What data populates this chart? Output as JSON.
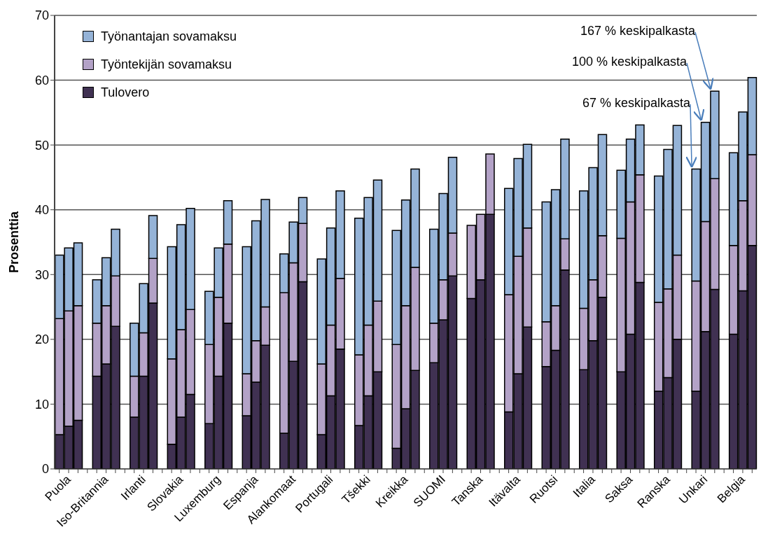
{
  "chart_data": {
    "type": "bar",
    "stacked": true,
    "ylabel": "Prosenttia",
    "categories": [
      null,
      "Puola",
      null,
      null,
      null,
      "Iso-Britannia",
      null,
      null,
      null,
      "Irlanti",
      null,
      null,
      null,
      "Slovakia",
      null,
      null,
      null,
      "Luxemburg",
      null,
      null,
      null,
      "Espanja",
      null,
      null,
      null,
      "Alankomaat",
      null,
      null,
      null,
      "Portugali",
      null,
      null,
      null,
      "Tšekki",
      null,
      null,
      null,
      "Kreikka",
      null,
      null,
      null,
      "SUOMI",
      null,
      null,
      null,
      "Tanska",
      null,
      null,
      null,
      "Itävalta",
      null,
      null,
      null,
      "Ruotsi",
      null,
      null,
      null,
      "Italia",
      null,
      null,
      null,
      "Saksa",
      null,
      null,
      null,
      "Ranska",
      null,
      null,
      null,
      "Unkari",
      null,
      null,
      null,
      "Belgia",
      null
    ],
    "series": [
      {
        "name": "Tulovero",
        "color": "#403152",
        "values": [
          5.3,
          6.6,
          7.5,
          null,
          14.3,
          16.2,
          22.0,
          null,
          8.0,
          14.3,
          25.6,
          null,
          3.8,
          8.0,
          11.5,
          null,
          7.0,
          14.3,
          22.5,
          null,
          8.2,
          13.4,
          19.1,
          null,
          5.5,
          16.6,
          28.9,
          null,
          5.3,
          11.3,
          18.5,
          null,
          6.7,
          11.3,
          15.0,
          null,
          3.2,
          9.3,
          15.2,
          null,
          16.4,
          23.0,
          29.8,
          null,
          26.3,
          29.2,
          39.3,
          null,
          8.8,
          14.7,
          21.9,
          null,
          15.8,
          18.3,
          30.7,
          null,
          15.3,
          19.8,
          26.5,
          null,
          15.0,
          20.8,
          28.8,
          null,
          12.0,
          14.1,
          20.0,
          null,
          12.0,
          21.2,
          27.7,
          null,
          20.8,
          27.5,
          34.5
        ]
      },
      {
        "name": "Työntekijän sovamaksu",
        "color": "#b3a2c7",
        "values": [
          17.9,
          17.8,
          17.7,
          null,
          8.2,
          9.0,
          7.8,
          null,
          6.3,
          6.7,
          6.9,
          null,
          13.2,
          13.5,
          13.1,
          null,
          12.2,
          12.2,
          12.2,
          null,
          6.5,
          6.4,
          5.9,
          null,
          21.7,
          15.2,
          9.0,
          null,
          10.9,
          10.9,
          10.9,
          null,
          10.9,
          10.9,
          10.9,
          null,
          16.0,
          15.9,
          15.9,
          null,
          6.1,
          6.2,
          6.6,
          null,
          11.3,
          10.1,
          9.3,
          null,
          18.1,
          18.1,
          15.3,
          null,
          6.9,
          6.9,
          4.8,
          null,
          9.5,
          9.4,
          9.5,
          null,
          20.6,
          20.4,
          16.6,
          null,
          13.7,
          13.7,
          13.0,
          null,
          17.0,
          17.0,
          17.1,
          null,
          13.7,
          13.9,
          14.0
        ]
      },
      {
        "name": "Työnantajan sovamaksu",
        "color": "#95b3d7",
        "values": [
          9.8,
          9.7,
          9.7,
          null,
          6.7,
          7.4,
          7.2,
          null,
          8.2,
          7.6,
          6.6,
          null,
          17.3,
          16.2,
          15.6,
          null,
          8.2,
          7.6,
          6.7,
          null,
          19.6,
          18.5,
          16.6,
          null,
          6.0,
          6.3,
          4.0,
          null,
          16.2,
          15.0,
          13.5,
          null,
          21.1,
          19.7,
          18.7,
          null,
          17.6,
          16.3,
          15.2,
          null,
          14.5,
          13.3,
          11.7,
          null,
          0,
          0,
          0,
          null,
          16.4,
          15.1,
          12.9,
          null,
          18.5,
          17.9,
          15.4,
          null,
          18.1,
          17.3,
          15.6,
          null,
          10.5,
          9.7,
          7.7,
          null,
          19.5,
          21.5,
          20.0,
          null,
          17.3,
          15.3,
          13.5,
          null,
          14.3,
          13.7,
          11.9
        ]
      }
    ],
    "ylim": [
      0,
      70
    ],
    "yticks": [
      0,
      10,
      20,
      30,
      40,
      50,
      60,
      70
    ],
    "grid": "y",
    "legend": "top left",
    "annotations": [
      "67 % keskipalkasta",
      "100 % keskipalkasta",
      "167 % keskipalkasta"
    ]
  }
}
